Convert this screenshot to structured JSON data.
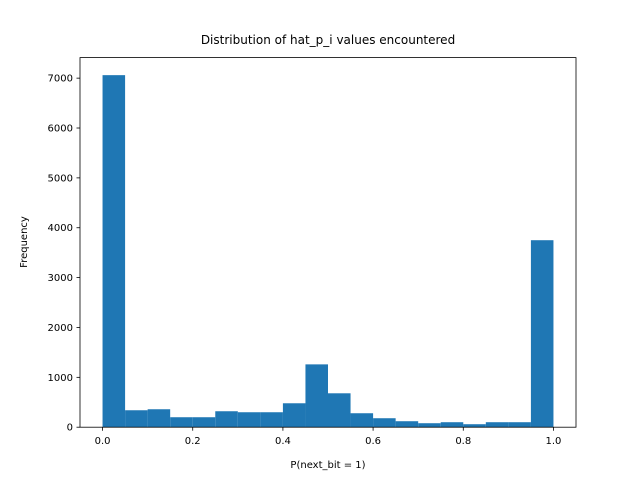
{
  "chart_data": {
    "type": "histogram",
    "title": "Distribution of hat_p_i values encountered",
    "xlabel": "P(next_bit = 1)",
    "ylabel": "Frequency",
    "color": "#1f77b4",
    "bins": [
      0,
      0.05,
      0.1,
      0.15,
      0.2,
      0.25,
      0.3,
      0.35,
      0.4,
      0.45,
      0.5,
      0.55,
      0.6,
      0.65,
      0.7,
      0.75,
      0.8,
      0.85,
      0.9,
      0.95,
      1
    ],
    "counts": [
      7060,
      340,
      360,
      200,
      200,
      320,
      300,
      300,
      480,
      1260,
      680,
      280,
      180,
      120,
      80,
      100,
      60,
      100,
      100,
      3750
    ],
    "xlim": [
      -0.05,
      1.05
    ],
    "ylim": [
      0,
      7412
    ],
    "xticks": [
      {
        "value": 0,
        "label": "0.0"
      },
      0.2,
      0.4,
      0.6,
      0.8,
      {
        "value": 1,
        "label": "1.0"
      }
    ],
    "yticks": [
      0,
      1000,
      2000,
      3000,
      4000,
      5000,
      6000,
      7000
    ],
    "grid": false
  }
}
